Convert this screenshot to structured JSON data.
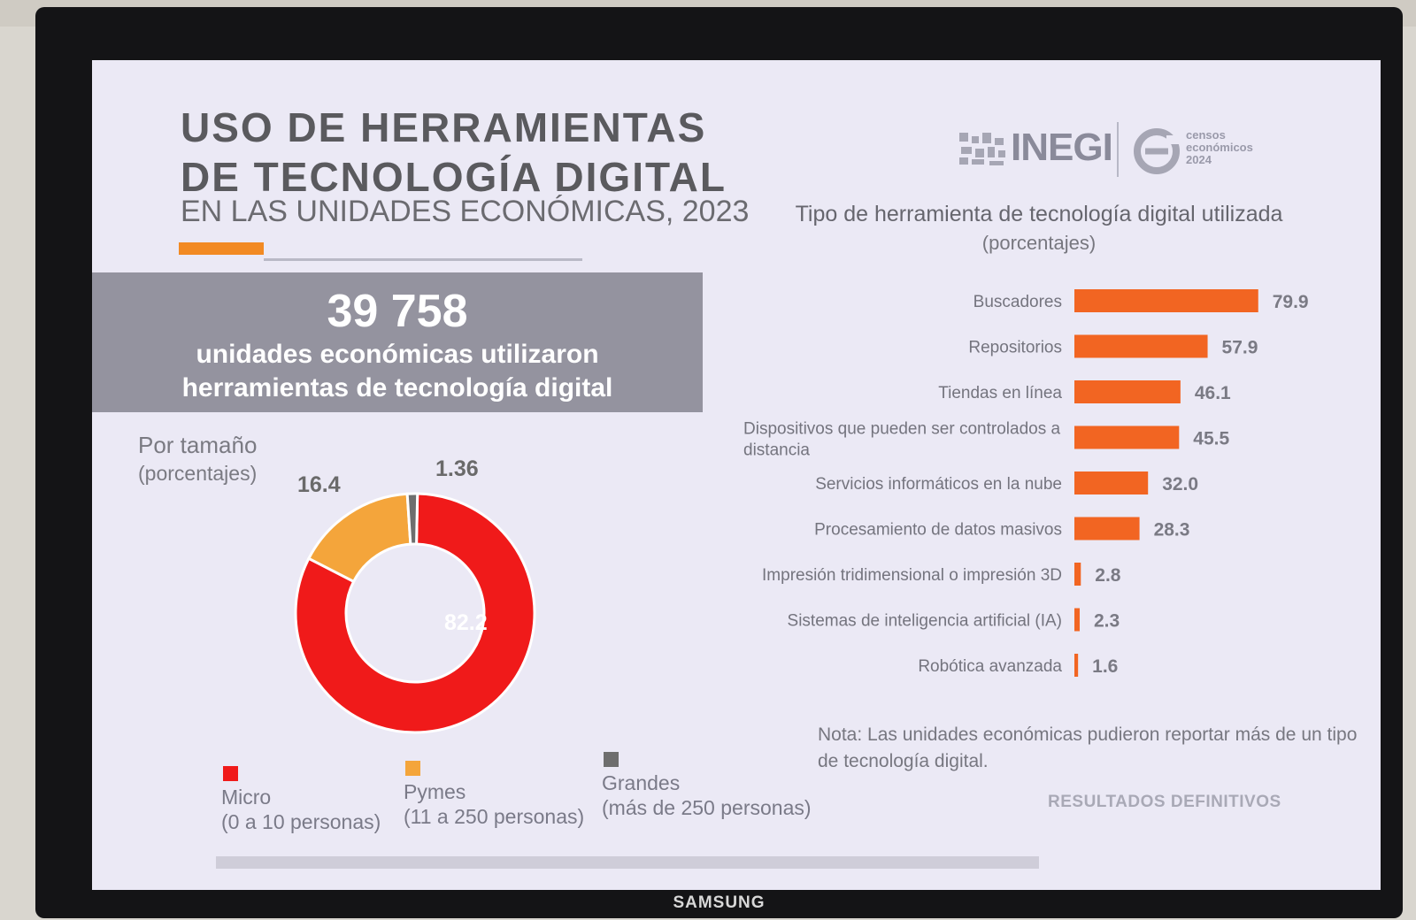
{
  "slide": {
    "title": "USO DE  HERRAMIENTAS\nDE TECNOLOGÍA DIGITAL",
    "subtitle": "EN LAS UNIDADES ECONÓMICAS, 2023",
    "highlight": {
      "number": "39 758",
      "text": "unidades económicas utilizaron\nherramientas de tecnología digital"
    },
    "logo": {
      "org": "INEGI",
      "censo": "censos\neconómicos\n2024"
    },
    "note": "Nota: Las unidades económicas pudieron reportar más de un tipo de tecnología digital.",
    "footer": "RESULTADOS DEFINITIVOS",
    "tv_brand": "SAMSUNG"
  },
  "chart_data": [
    {
      "type": "pie",
      "title": "Por tamaño",
      "unit": "(porcentajes)",
      "slices": [
        {
          "name": "Micro",
          "range": "(0 a 10 personas)",
          "value": 82.2,
          "label": "82.2",
          "color": "#f01a1a"
        },
        {
          "name": "Pymes",
          "range": "(11 a 250 personas)",
          "value": 16.4,
          "label": "16.4",
          "color": "#f4a53b"
        },
        {
          "name": "Grandes",
          "range": "(más de 250 personas)",
          "value": 1.36,
          "label": "1.36",
          "color": "#6e6e6e"
        }
      ]
    },
    {
      "type": "bar",
      "orientation": "horizontal",
      "title": "Tipo de herramienta de tecnología digital utilizada",
      "unit": "(porcentajes)",
      "bar_color": "#f26522",
      "categories": [
        "Buscadores",
        "Repositorios",
        "Tiendas en línea",
        "Dispositivos que pueden ser controlados a distancia",
        "Servicios informáticos en la nube",
        "Procesamiento de datos masivos",
        "Impresión tridimensional o impresión 3D",
        "Sistemas de inteligencia artificial (IA)",
        "Robótica avanzada"
      ],
      "values": [
        79.9,
        57.9,
        46.1,
        45.5,
        32.0,
        28.3,
        2.8,
        2.3,
        1.6
      ],
      "labels": [
        "79.9",
        "57.9",
        "46.1",
        "45.5",
        "32.0",
        "28.3",
        "2.8",
        "2.3",
        "1.6"
      ]
    }
  ]
}
